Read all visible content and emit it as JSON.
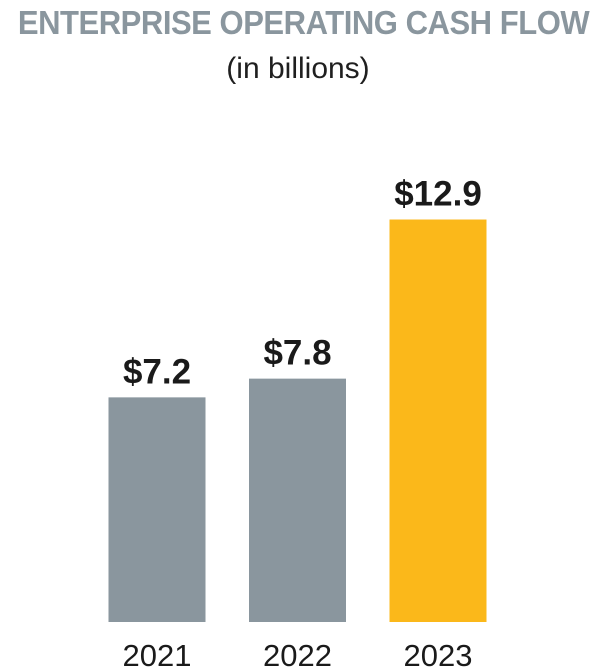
{
  "chart_data": {
    "type": "bar",
    "title": "ENTERPRISE OPERATING CASH FLOW",
    "subtitle": "(in billions)",
    "categories": [
      "2021",
      "2022",
      "2023"
    ],
    "values": [
      7.2,
      7.8,
      12.9
    ],
    "value_labels": [
      "$7.2",
      "$7.8",
      "$12.9"
    ],
    "bar_colors": [
      "#8a969e",
      "#8a969e",
      "#fbb81a"
    ],
    "xlabel": "",
    "ylabel": "",
    "grid": false,
    "legend": "none"
  }
}
